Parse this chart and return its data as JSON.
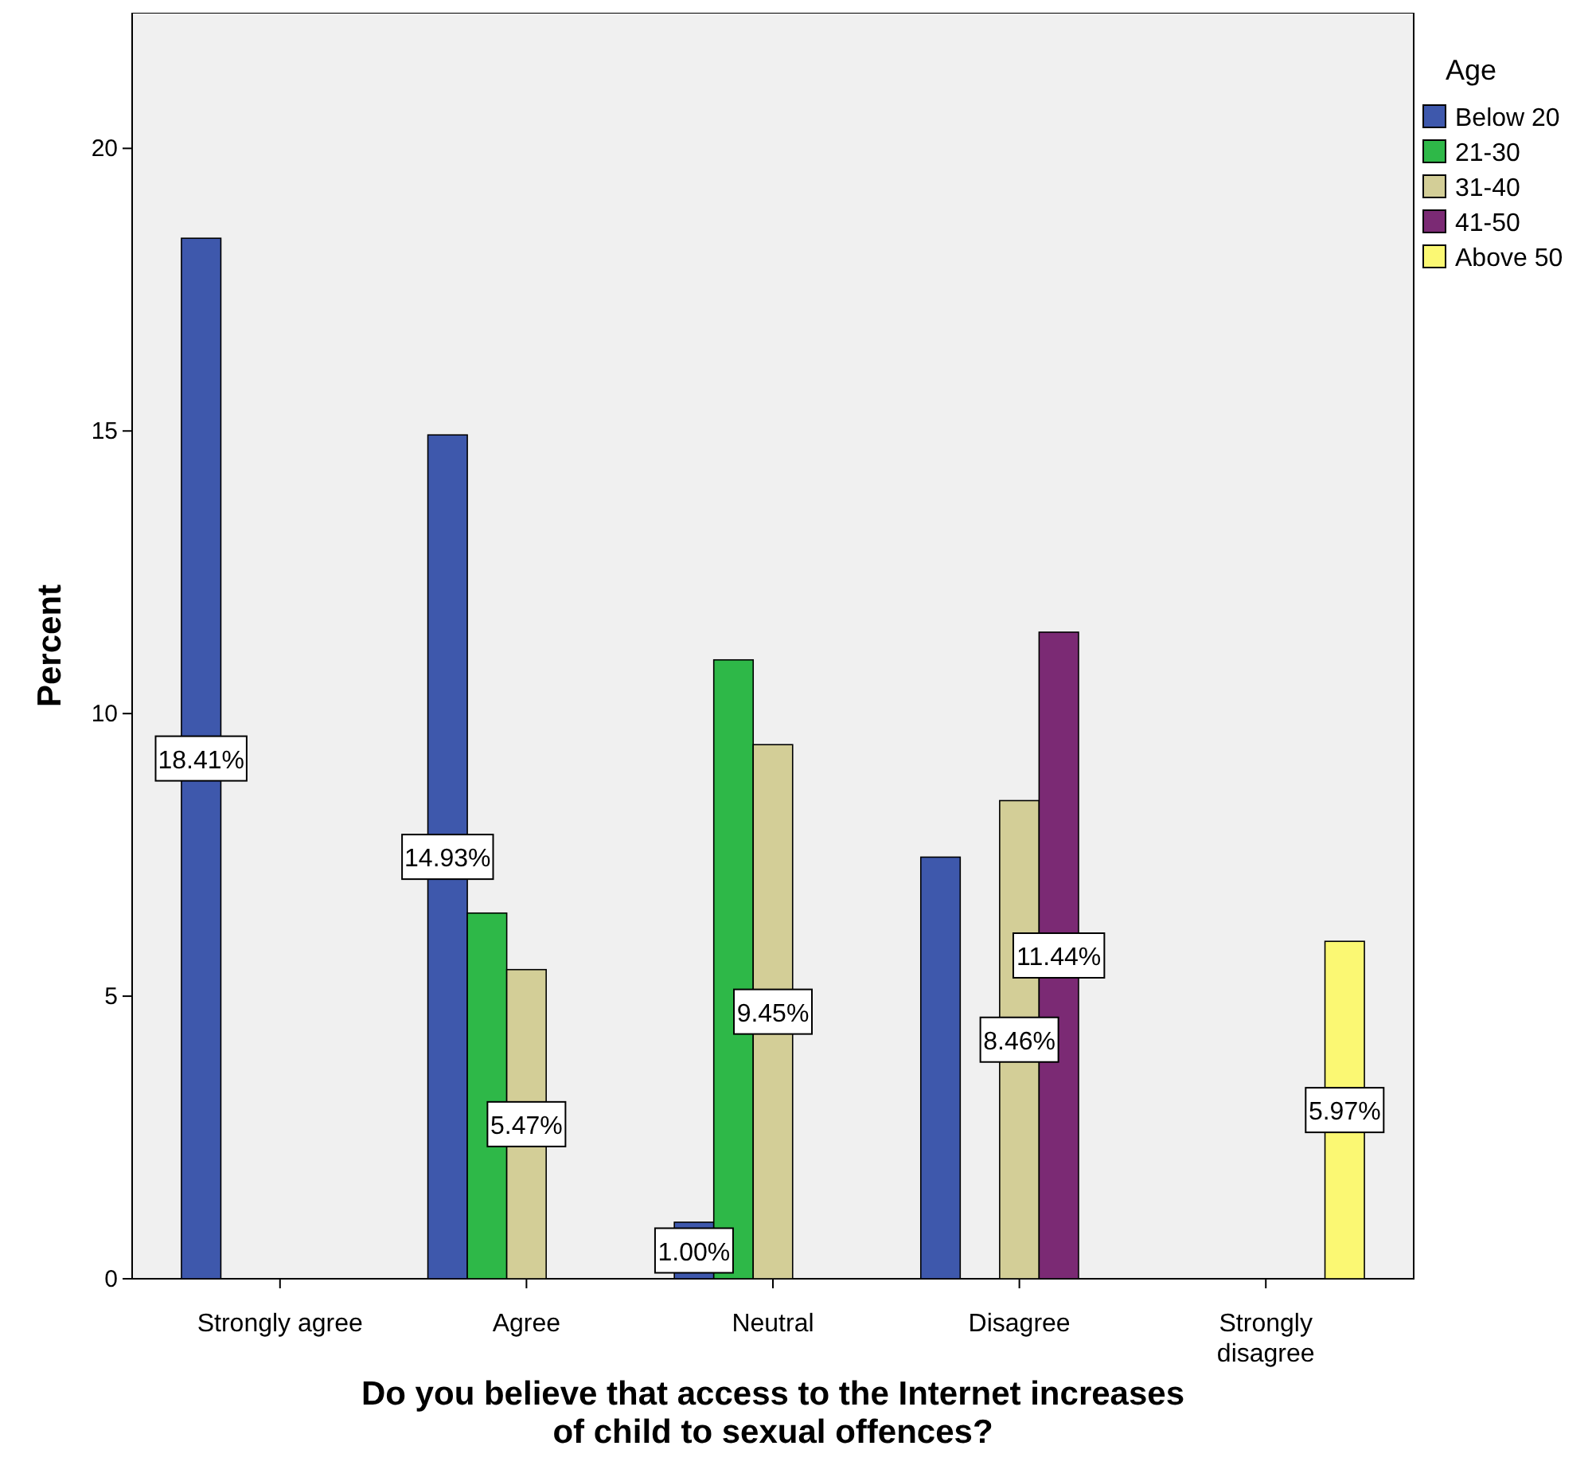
{
  "chart_data": {
    "type": "bar",
    "xlabel": "Do you believe that access to the Internet increases of child to sexual offences?",
    "ylabel": "Percent",
    "legend_title": "Age",
    "legend": "right",
    "categories": [
      "Strongly agree",
      "Agree",
      "Neutral",
      "Disagree",
      "Strongly disagree"
    ],
    "ylim": [
      0,
      22.4
    ],
    "yticks": [
      0,
      5,
      10,
      15,
      20
    ],
    "grid": false,
    "series": [
      {
        "name": "Below 20",
        "color": "#3e58ac",
        "values": [
          18.41,
          14.93,
          1.0,
          7.46,
          null
        ],
        "value_labels": [
          "18.41%",
          "14.93%",
          "1.00%",
          null,
          null
        ]
      },
      {
        "name": "21-30",
        "color": "#2eb848",
        "values": [
          null,
          6.47,
          10.95,
          null,
          null
        ],
        "value_labels": [
          null,
          null,
          null,
          null,
          null
        ]
      },
      {
        "name": "31-40",
        "color": "#d3ce97",
        "values": [
          null,
          5.47,
          9.45,
          8.46,
          null
        ],
        "value_labels": [
          null,
          "5.47%",
          "9.45%",
          "8.46%",
          null
        ]
      },
      {
        "name": "41-50",
        "color": "#7b2a74",
        "values": [
          null,
          null,
          null,
          11.44,
          null
        ],
        "value_labels": [
          null,
          null,
          null,
          "11.44%",
          null
        ]
      },
      {
        "name": "Above 50",
        "color": "#fbf873",
        "values": [
          null,
          null,
          null,
          null,
          5.97
        ],
        "value_labels": [
          null,
          null,
          null,
          null,
          "5.97%"
        ]
      }
    ]
  }
}
